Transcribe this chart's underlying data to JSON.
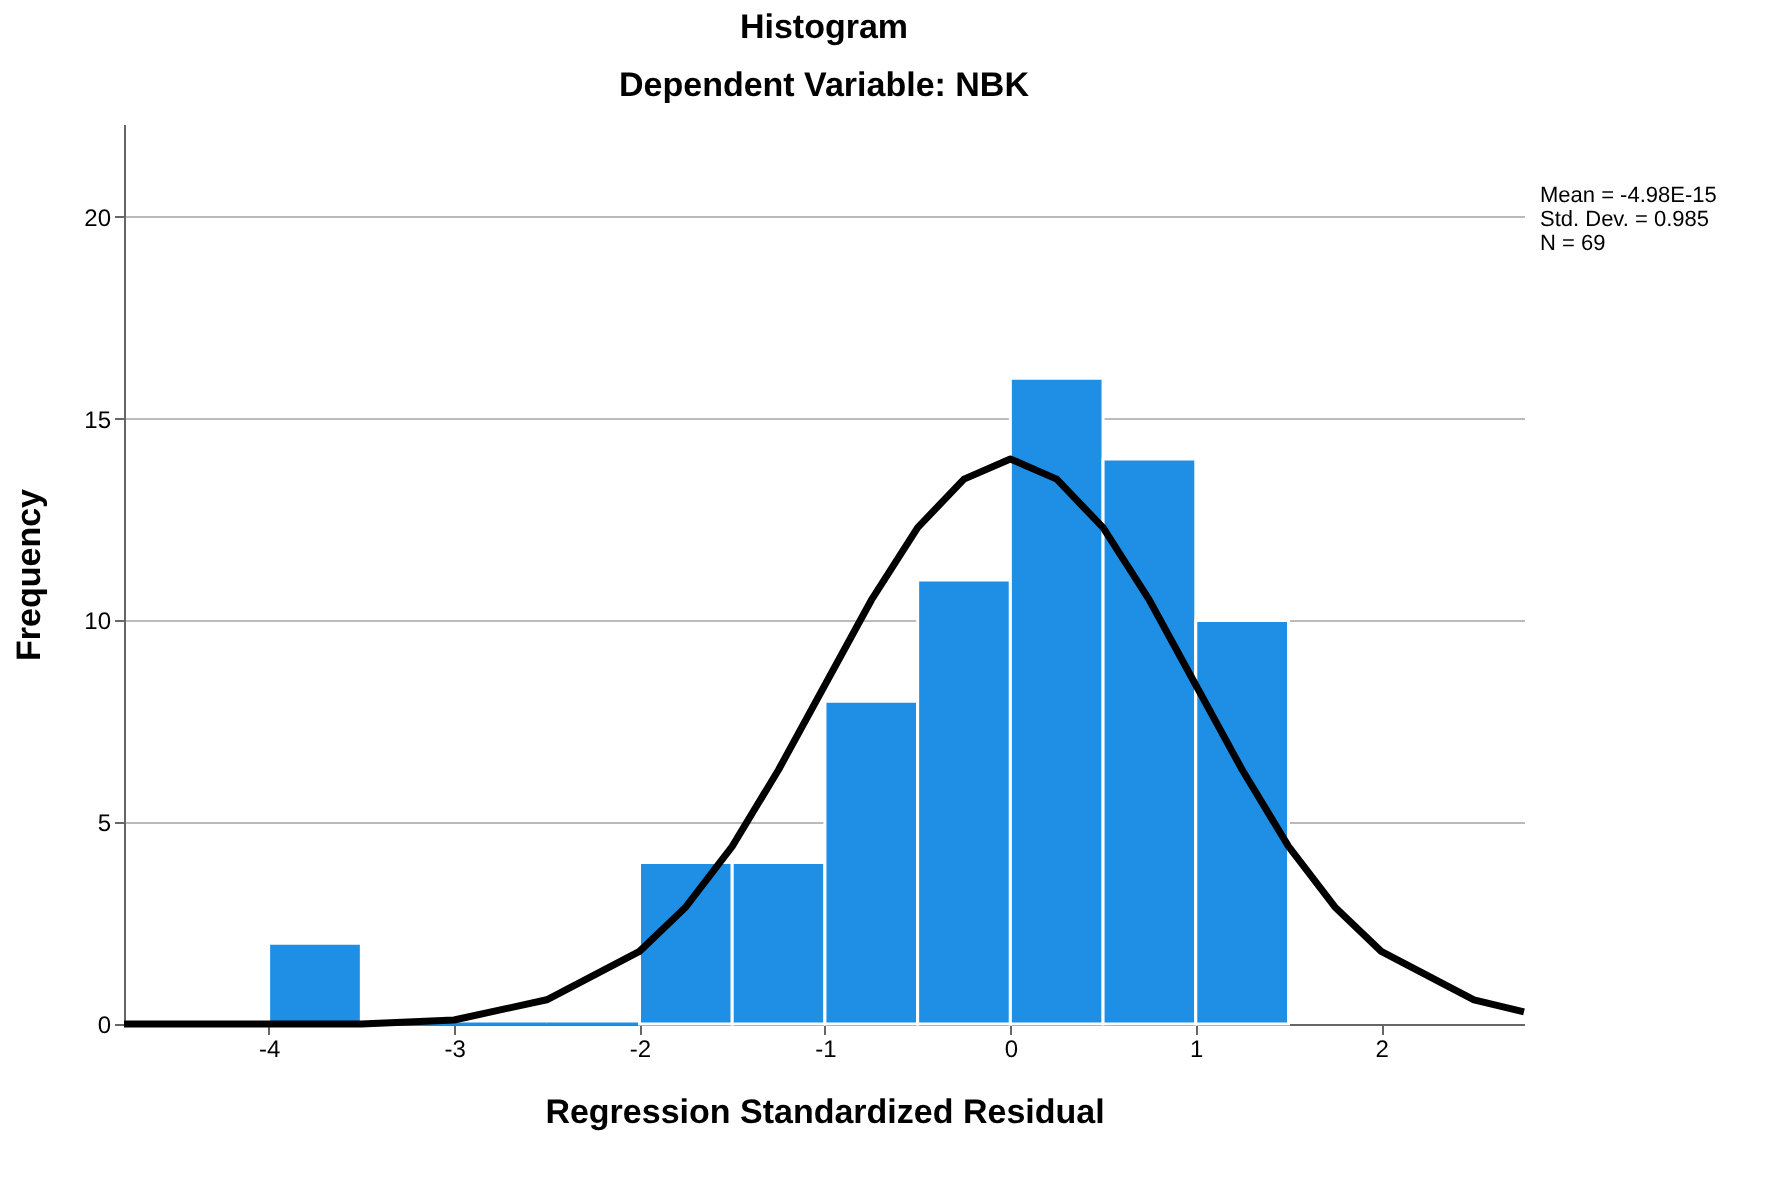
{
  "chart_data": {
    "type": "histogram",
    "title": "Histogram",
    "subtitle": "Dependent Variable: NBK",
    "xlabel": "Regression Standardized Residual",
    "ylabel": "Frequency",
    "bins": [
      -4,
      -3.5,
      -3,
      -2.5,
      -2,
      -1.5,
      -1,
      -0.5,
      0,
      0.5,
      1,
      1.5
    ],
    "values": [
      2,
      0,
      0,
      0,
      4,
      4,
      8,
      11,
      16,
      14,
      10
    ],
    "color": "#1f8fe6",
    "series": [
      {
        "type": "line",
        "color": "#000000",
        "x": [
          -4.78,
          -4,
          -3.5,
          -3,
          -2.5,
          -2,
          -1.75,
          -1.5,
          -1.25,
          -1,
          -0.75,
          -0.5,
          -0.25,
          0,
          0.25,
          0.5,
          0.75,
          1,
          1.25,
          1.5,
          1.75,
          2,
          2.5,
          2.77
        ],
        "values": [
          0.0,
          0.0,
          0.0,
          0.1,
          0.6,
          1.8,
          2.9,
          4.4,
          6.3,
          8.4,
          10.5,
          12.3,
          13.5,
          14.0,
          13.5,
          12.3,
          10.5,
          8.4,
          6.3,
          4.4,
          2.9,
          1.8,
          0.6,
          0.3
        ]
      }
    ],
    "xlim": [
      -4.78,
      2.77
    ],
    "xticks": [
      -4,
      -3,
      -2,
      -1,
      0,
      1,
      2
    ],
    "ylim": [
      0,
      22.3
    ],
    "yticks": [
      0,
      5,
      10,
      15,
      20
    ],
    "grid": "y",
    "marker": "none",
    "line_style": "solid",
    "annotations": [
      "Mean = -4.98E-15",
      "Std. Dev. = 0.985",
      "N = 69"
    ]
  }
}
